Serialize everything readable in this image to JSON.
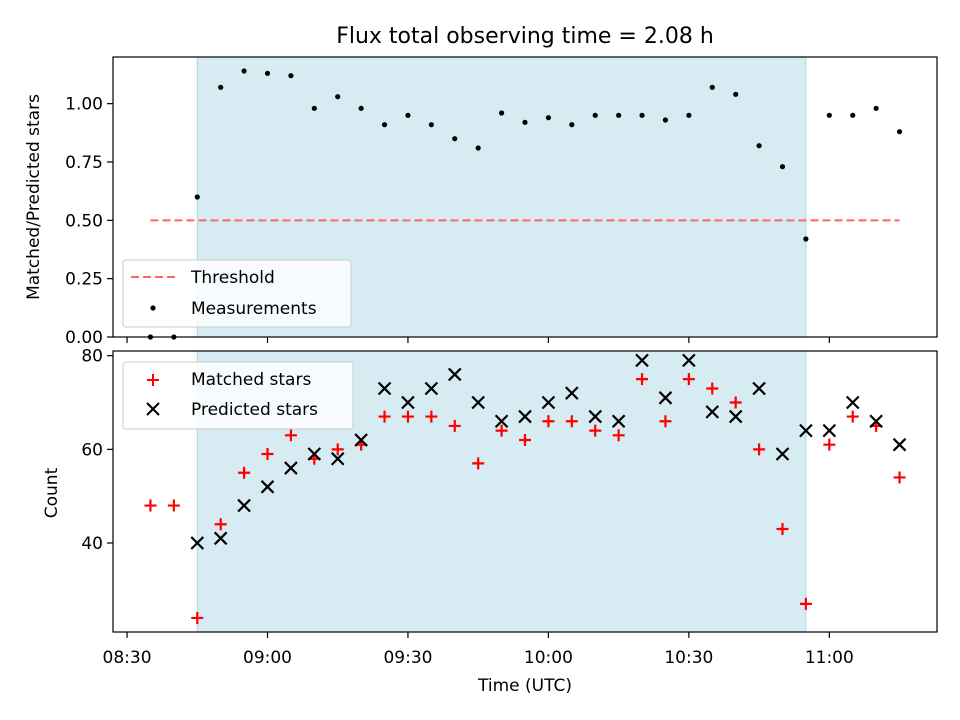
{
  "title": "Flux total observing time = 2.08 h",
  "colors": {
    "shade": "#add8e6",
    "threshold": "#ff6666",
    "measurement": "#000000",
    "matched": "#ff0000",
    "predicted": "#000000"
  },
  "chart_data": [
    {
      "type": "scatter",
      "ylabel": "Matched/Predicted stars",
      "ylim": [
        0,
        1.2
      ],
      "yticks": [
        0.0,
        0.25,
        0.5,
        0.75,
        1.0
      ],
      "yticklabels": [
        "0.00",
        "0.25",
        "0.50",
        "0.75",
        "1.00"
      ],
      "xlim": [
        "08:27",
        "11:23"
      ],
      "shaded_interval": [
        "08:45",
        "10:55"
      ],
      "threshold": {
        "name": "Threshold",
        "value": 0.5,
        "x_range": [
          "08:35",
          "11:15"
        ]
      },
      "legend": {
        "position": "lower-left",
        "entries": [
          "Threshold",
          "Measurements"
        ]
      },
      "series": [
        {
          "name": "Measurements",
          "x": [
            "08:35",
            "08:40",
            "08:45",
            "08:50",
            "08:55",
            "09:00",
            "09:05",
            "09:10",
            "09:15",
            "09:20",
            "09:25",
            "09:30",
            "09:35",
            "09:40",
            "09:45",
            "09:50",
            "09:55",
            "10:00",
            "10:05",
            "10:10",
            "10:15",
            "10:20",
            "10:25",
            "10:30",
            "10:35",
            "10:40",
            "10:45",
            "10:50",
            "10:55",
            "11:00",
            "11:05",
            "11:10",
            "11:15"
          ],
          "y": [
            0.0,
            0.0,
            0.6,
            1.07,
            1.14,
            1.13,
            1.12,
            0.98,
            1.03,
            0.98,
            0.91,
            0.95,
            0.91,
            0.85,
            0.81,
            0.96,
            0.92,
            0.94,
            0.91,
            0.95,
            0.95,
            0.95,
            0.93,
            0.95,
            1.07,
            1.04,
            0.82,
            0.73,
            0.42,
            0.95,
            0.95,
            0.98,
            0.88
          ]
        }
      ]
    },
    {
      "type": "scatter",
      "xlabel": "Time (UTC)",
      "ylabel": "Count",
      "ylim": [
        21,
        81
      ],
      "yticks": [
        40,
        60,
        80
      ],
      "yticklabels": [
        "40",
        "60",
        "80"
      ],
      "xlim": [
        "08:27",
        "11:23"
      ],
      "xticks": [
        "08:30",
        "09:00",
        "09:30",
        "10:00",
        "10:30",
        "11:00"
      ],
      "xticklabels": [
        "08:30",
        "09:00",
        "09:30",
        "10:00",
        "10:30",
        "11:00"
      ],
      "shaded_interval": [
        "08:45",
        "10:55"
      ],
      "legend": {
        "position": "top-left",
        "entries": [
          "Matched stars",
          "Predicted stars"
        ]
      },
      "series": [
        {
          "name": "Matched stars",
          "x": [
            "08:35",
            "08:40",
            "08:45",
            "08:50",
            "08:55",
            "09:00",
            "09:05",
            "09:10",
            "09:15",
            "09:20",
            "09:25",
            "09:30",
            "09:35",
            "09:40",
            "09:45",
            "09:50",
            "09:55",
            "10:00",
            "10:05",
            "10:10",
            "10:15",
            "10:20",
            "10:25",
            "10:30",
            "10:35",
            "10:40",
            "10:45",
            "10:50",
            "10:55",
            "11:00",
            "11:05",
            "11:10",
            "11:15"
          ],
          "y": [
            48,
            48,
            24,
            44,
            55,
            59,
            63,
            58,
            60,
            61,
            67,
            67,
            67,
            65,
            57,
            64,
            62,
            66,
            66,
            64,
            63,
            75,
            66,
            75,
            73,
            70,
            60,
            43,
            27,
            61,
            67,
            65,
            54
          ]
        },
        {
          "name": "Predicted stars",
          "x": [
            "08:45",
            "08:50",
            "08:55",
            "09:00",
            "09:05",
            "09:10",
            "09:15",
            "09:20",
            "09:25",
            "09:30",
            "09:35",
            "09:40",
            "09:45",
            "09:50",
            "09:55",
            "10:00",
            "10:05",
            "10:10",
            "10:15",
            "10:20",
            "10:25",
            "10:30",
            "10:35",
            "10:40",
            "10:45",
            "10:50",
            "10:55",
            "11:00",
            "11:05",
            "11:10",
            "11:15"
          ],
          "y": [
            40,
            41,
            48,
            52,
            56,
            59,
            58,
            62,
            73,
            70,
            73,
            76,
            70,
            66,
            67,
            70,
            72,
            67,
            66,
            79,
            71,
            79,
            68,
            67,
            73,
            59,
            64,
            64,
            70,
            66,
            61
          ]
        }
      ]
    }
  ]
}
